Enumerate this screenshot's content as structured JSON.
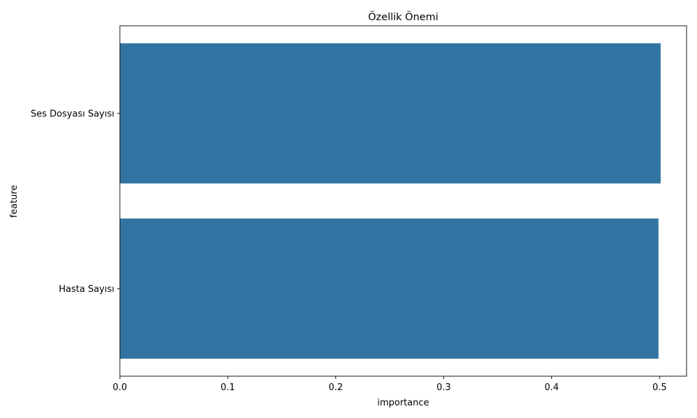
{
  "chart_data": {
    "type": "bar",
    "orientation": "horizontal",
    "title": "Özellik Önemi",
    "xlabel": "importance",
    "ylabel": "feature",
    "categories": [
      "Ses Dosyası Sayısı",
      "Hasta Sayısı"
    ],
    "values": [
      0.501,
      0.499
    ],
    "xlim": [
      0,
      0.525
    ],
    "xticks": [
      "0.0",
      "0.1",
      "0.2",
      "0.3",
      "0.4",
      "0.5"
    ],
    "bar_color": "#3274a1",
    "grid": false,
    "legend": "none"
  }
}
